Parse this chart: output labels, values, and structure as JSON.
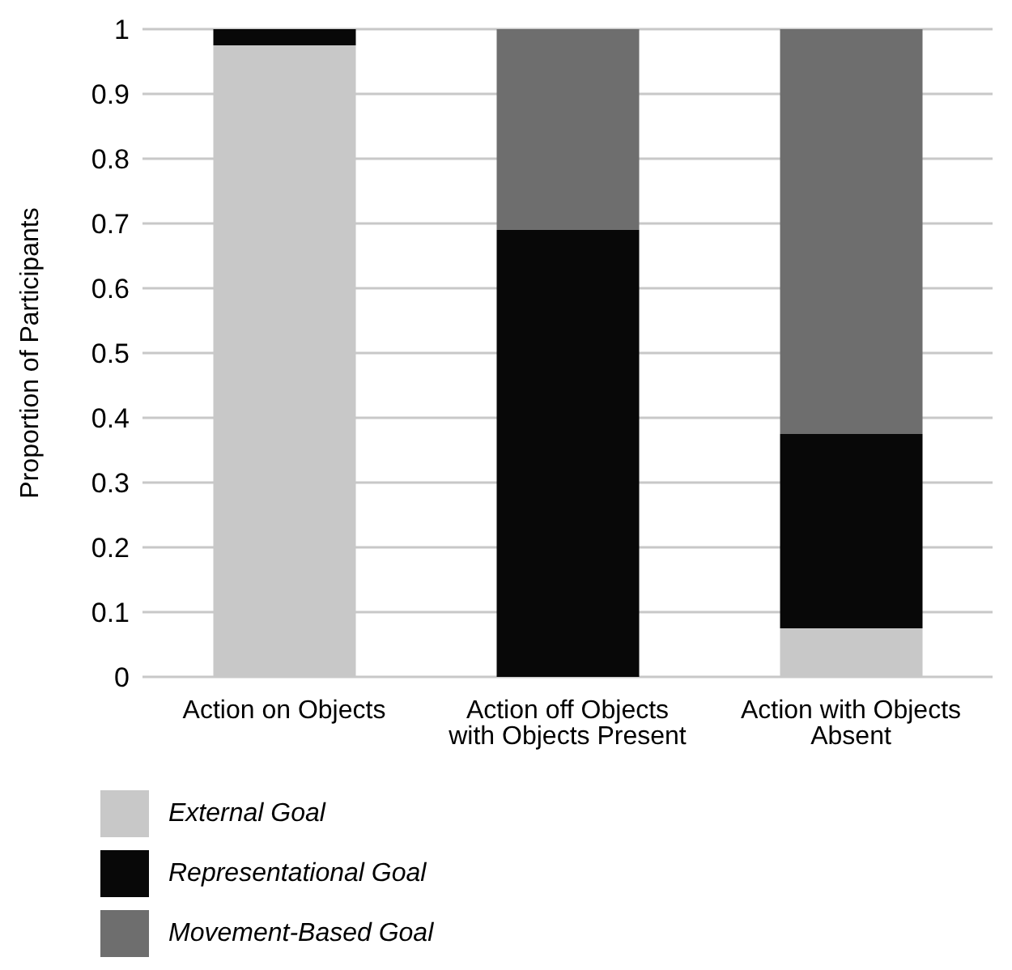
{
  "chart_data": {
    "type": "bar",
    "stacked": true,
    "ylabel": "Proportion of Participants",
    "categories": [
      "Action on Objects",
      "Action off Objects with Objects Present",
      "Action with Objects Absent"
    ],
    "series": [
      {
        "name": "External Goal",
        "color": "#c8c8c8",
        "values": [
          0.975,
          0,
          0.075
        ]
      },
      {
        "name": "Representational Goal",
        "color": "#080808",
        "values": [
          0.025,
          0.69,
          0.3
        ]
      },
      {
        "name": "Movement-Based Goal",
        "color": "#6e6e6e",
        "values": [
          0,
          0.31,
          0.625
        ]
      }
    ],
    "ylim": [
      0,
      1
    ],
    "yticks": [
      0,
      0.1,
      0.2,
      0.3,
      0.4,
      0.5,
      0.6,
      0.7,
      0.8,
      0.9,
      1
    ],
    "grid": "y",
    "legend": "bottom"
  }
}
